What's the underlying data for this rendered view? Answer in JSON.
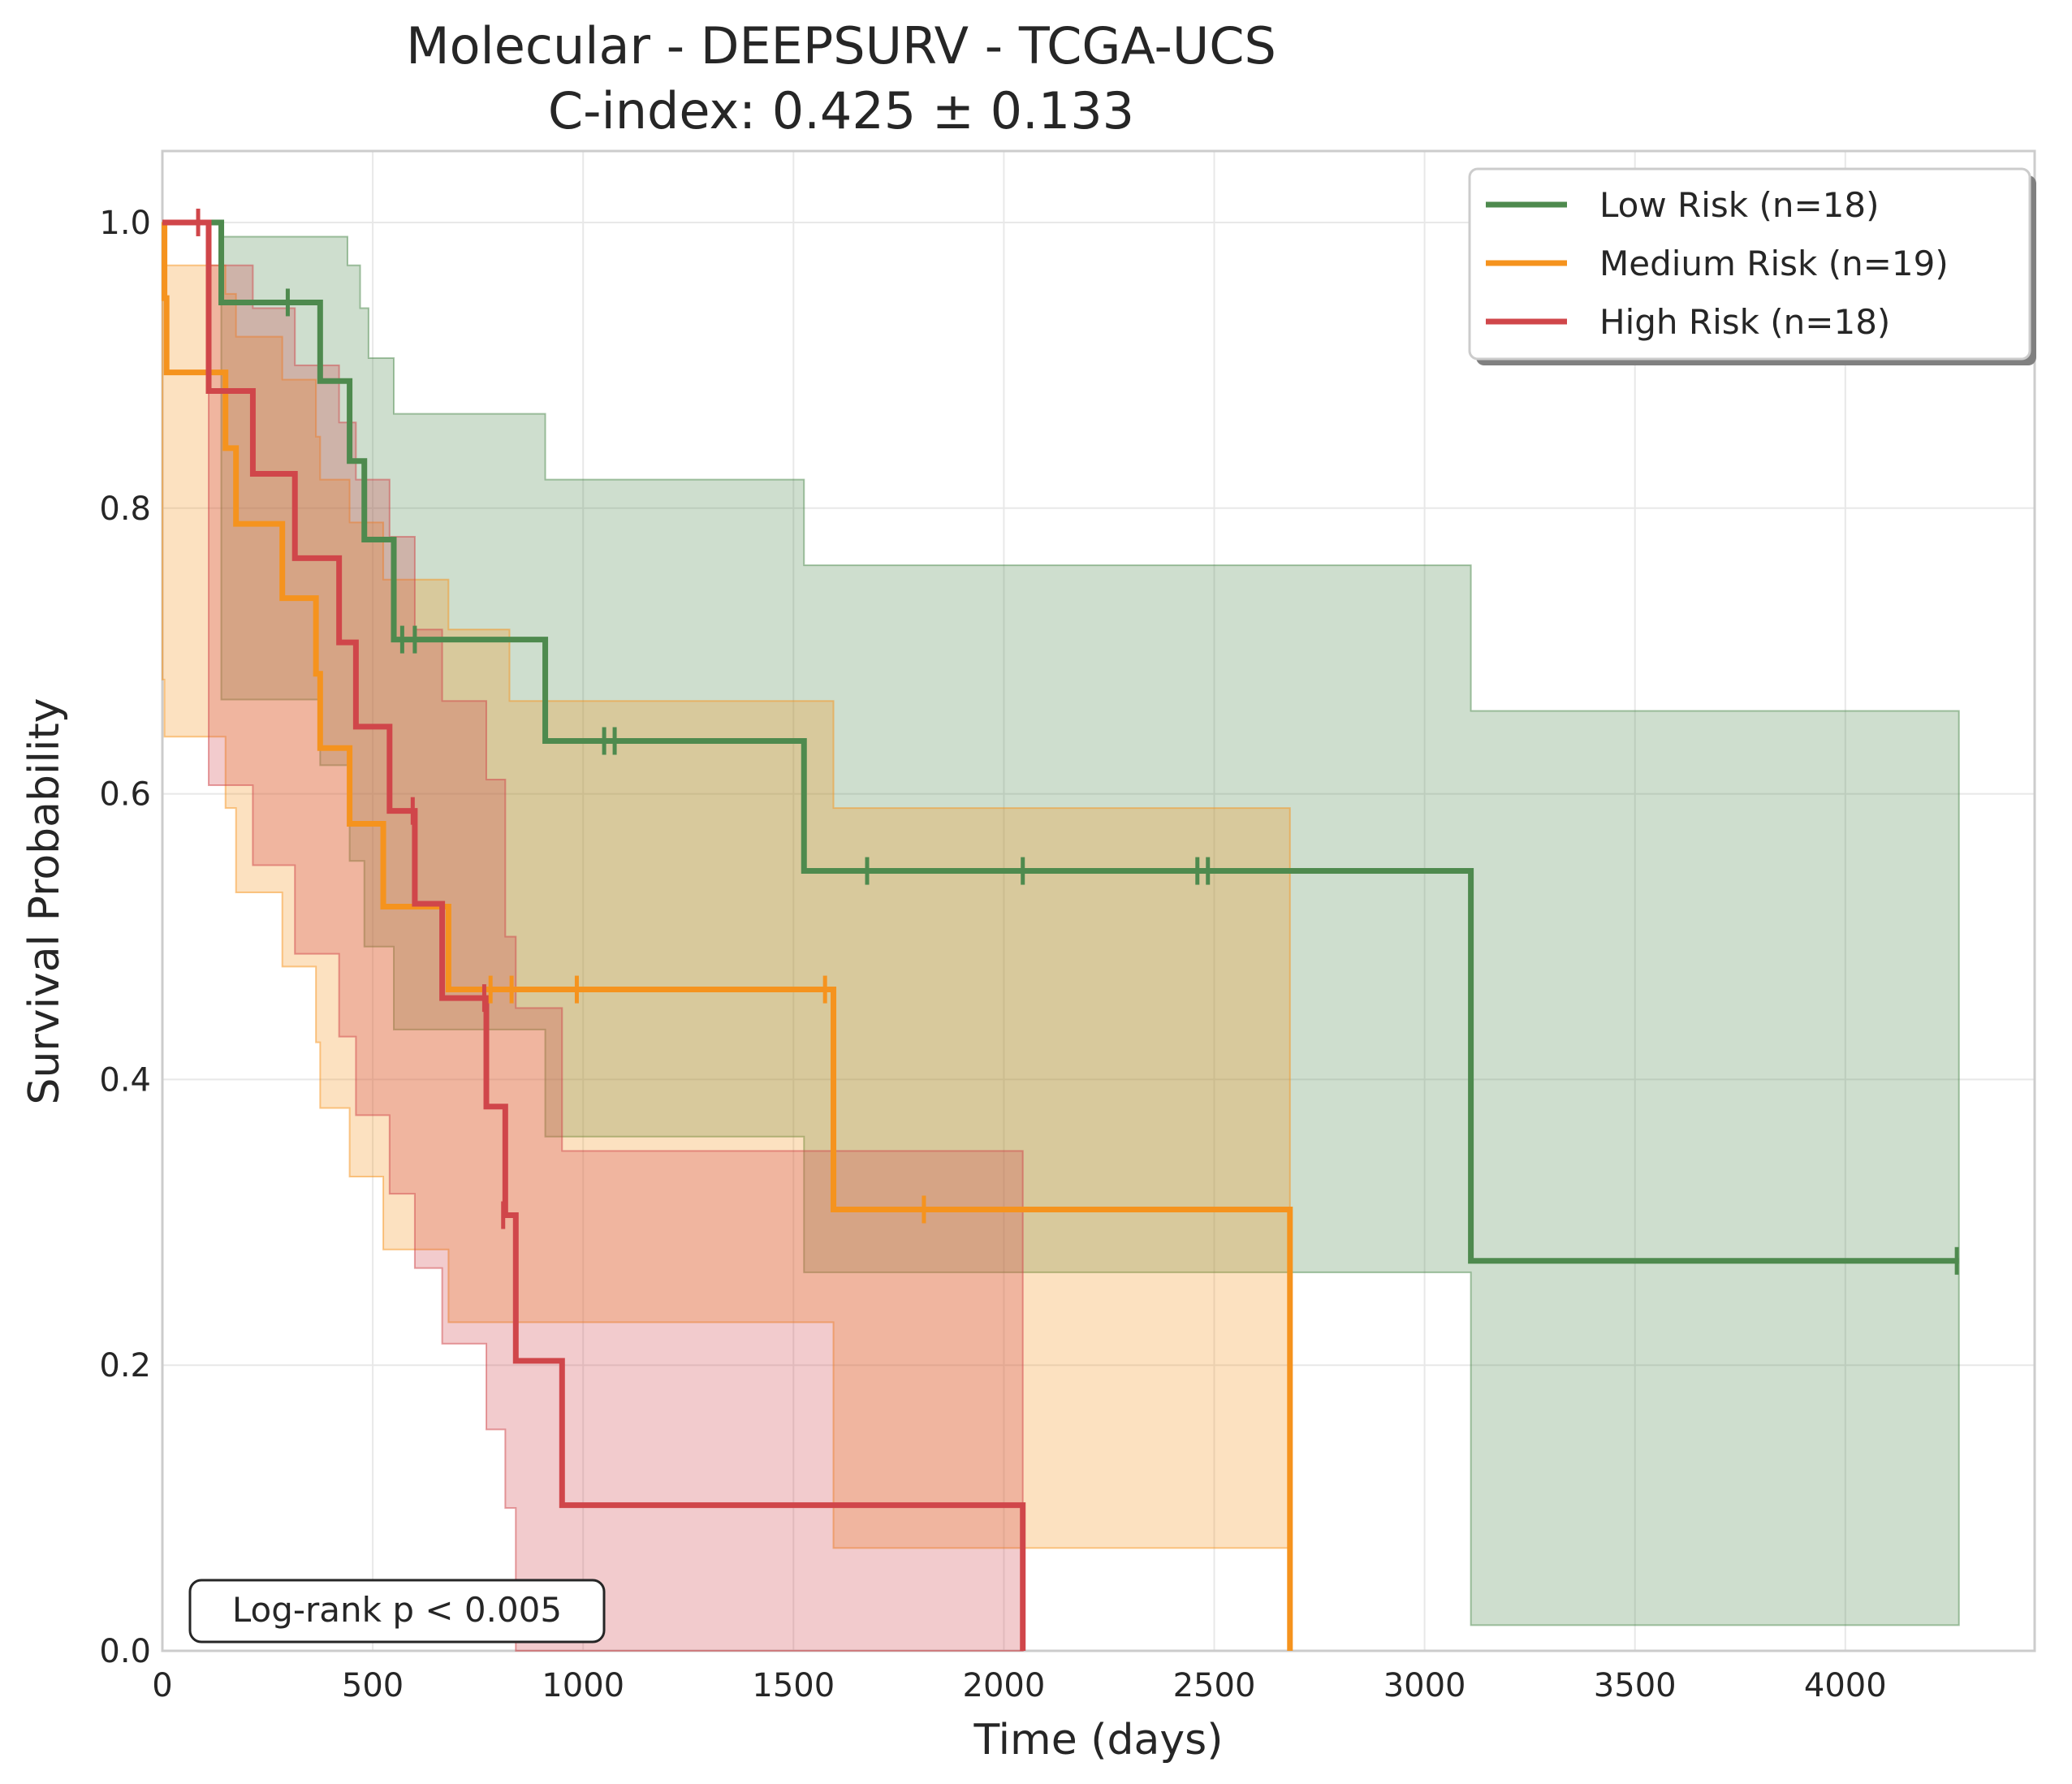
{
  "chart_data": {
    "type": "line",
    "subtype": "kaplan-meier step survival curves with confidence bands",
    "title": "Molecular - DEEPSURV - TCGA-UCS",
    "subtitle": "C-index: 0.425 ± 0.133",
    "xlabel": "Time (days)",
    "ylabel": "Survival Probability",
    "xlim": [
      0,
      4450
    ],
    "ylim": [
      0,
      1.05
    ],
    "xticks": [
      0,
      500,
      1000,
      1500,
      2000,
      2500,
      3000,
      3500,
      4000
    ],
    "yticks": [
      0.0,
      0.2,
      0.4,
      0.6,
      0.8,
      1.0
    ],
    "grid": true,
    "legend_position": "top-right",
    "annotation": "Log-rank p < 0.005",
    "series": [
      {
        "name": "Low Risk (n=18)",
        "color": "#4e8a4e",
        "steps": [
          [
            0,
            1.0
          ],
          [
            140,
            0.944
          ],
          [
            375,
            0.889
          ],
          [
            445,
            0.833
          ],
          [
            480,
            0.778
          ],
          [
            550,
            0.708
          ],
          [
            910,
            0.637
          ],
          [
            1525,
            0.546
          ],
          [
            3110,
            0.273
          ],
          [
            4270,
            0.273
          ]
        ],
        "ci_upper": [
          [
            0,
            1.0
          ],
          [
            140,
            0.99
          ],
          [
            370,
            0.99
          ],
          [
            440,
            0.97
          ],
          [
            470,
            0.94
          ],
          [
            490,
            0.905
          ],
          [
            550,
            0.866
          ],
          [
            910,
            0.82
          ],
          [
            1525,
            0.76
          ],
          [
            3110,
            0.658
          ],
          [
            4270,
            0.658
          ]
        ],
        "ci_lower": [
          [
            0,
            1.0
          ],
          [
            140,
            0.666
          ],
          [
            375,
            0.62
          ],
          [
            445,
            0.553
          ],
          [
            480,
            0.493
          ],
          [
            550,
            0.435
          ],
          [
            910,
            0.36
          ],
          [
            1525,
            0.265
          ],
          [
            3110,
            0.018
          ],
          [
            4270,
            0.018
          ]
        ],
        "censored": [
          [
            298,
            0.944
          ],
          [
            570,
            0.708
          ],
          [
            600,
            0.708
          ],
          [
            1050,
            0.637
          ],
          [
            1075,
            0.637
          ],
          [
            1675,
            0.546
          ],
          [
            2045,
            0.546
          ],
          [
            2460,
            0.546
          ],
          [
            2485,
            0.546
          ],
          [
            4265,
            0.273
          ]
        ]
      },
      {
        "name": "Medium Risk (n=19)",
        "color": "#f5931e",
        "steps": [
          [
            0,
            1.0
          ],
          [
            5,
            0.947
          ],
          [
            10,
            0.895
          ],
          [
            150,
            0.842
          ],
          [
            175,
            0.789
          ],
          [
            285,
            0.737
          ],
          [
            365,
            0.684
          ],
          [
            375,
            0.632
          ],
          [
            445,
            0.579
          ],
          [
            525,
            0.521
          ],
          [
            680,
            0.463
          ],
          [
            1595,
            0.309
          ],
          [
            2680,
            0.0
          ]
        ],
        "ci_upper": [
          [
            0,
            1.0
          ],
          [
            5,
            0.97
          ],
          [
            150,
            0.95
          ],
          [
            175,
            0.92
          ],
          [
            285,
            0.89
          ],
          [
            365,
            0.85
          ],
          [
            375,
            0.82
          ],
          [
            445,
            0.79
          ],
          [
            525,
            0.75
          ],
          [
            680,
            0.715
          ],
          [
            825,
            0.665
          ],
          [
            1595,
            0.59
          ],
          [
            2680,
            0.59
          ]
        ],
        "ci_lower": [
          [
            0,
            0.68
          ],
          [
            5,
            0.64
          ],
          [
            150,
            0.59
          ],
          [
            175,
            0.531
          ],
          [
            285,
            0.479
          ],
          [
            365,
            0.426
          ],
          [
            375,
            0.38
          ],
          [
            445,
            0.332
          ],
          [
            525,
            0.281
          ],
          [
            680,
            0.23
          ],
          [
            1595,
            0.072
          ],
          [
            2680,
            0.072
          ]
        ],
        "censored": [
          [
            780,
            0.463
          ],
          [
            830,
            0.463
          ],
          [
            985,
            0.463
          ],
          [
            1575,
            0.463
          ],
          [
            1810,
            0.309
          ]
        ]
      },
      {
        "name": "High Risk (n=18)",
        "color": "#d0464a",
        "steps": [
          [
            0,
            1.0
          ],
          [
            110,
            0.882
          ],
          [
            215,
            0.824
          ],
          [
            315,
            0.765
          ],
          [
            420,
            0.706
          ],
          [
            460,
            0.647
          ],
          [
            540,
            0.588
          ],
          [
            600,
            0.523
          ],
          [
            665,
            0.457
          ],
          [
            770,
            0.381
          ],
          [
            815,
            0.305
          ],
          [
            840,
            0.203
          ],
          [
            950,
            0.102
          ],
          [
            2045,
            0.0
          ]
        ],
        "ci_upper": [
          [
            0,
            1.0
          ],
          [
            110,
            0.97
          ],
          [
            215,
            0.94
          ],
          [
            315,
            0.9
          ],
          [
            420,
            0.86
          ],
          [
            460,
            0.82
          ],
          [
            540,
            0.78
          ],
          [
            600,
            0.715
          ],
          [
            665,
            0.665
          ],
          [
            770,
            0.61
          ],
          [
            815,
            0.5
          ],
          [
            840,
            0.45
          ],
          [
            950,
            0.35
          ],
          [
            2045,
            0.35
          ]
        ],
        "ci_lower": [
          [
            0,
            1.0
          ],
          [
            110,
            0.606
          ],
          [
            215,
            0.55
          ],
          [
            315,
            0.488
          ],
          [
            420,
            0.43
          ],
          [
            460,
            0.375
          ],
          [
            540,
            0.32
          ],
          [
            600,
            0.268
          ],
          [
            665,
            0.215
          ],
          [
            770,
            0.155
          ],
          [
            815,
            0.1
          ],
          [
            840,
            0.0
          ],
          [
            950,
            0.0
          ],
          [
            2045,
            0.0
          ]
        ],
        "censored": [
          [
            85,
            1.0
          ],
          [
            595,
            0.588
          ],
          [
            765,
            0.457
          ],
          [
            810,
            0.305
          ]
        ]
      }
    ]
  }
}
